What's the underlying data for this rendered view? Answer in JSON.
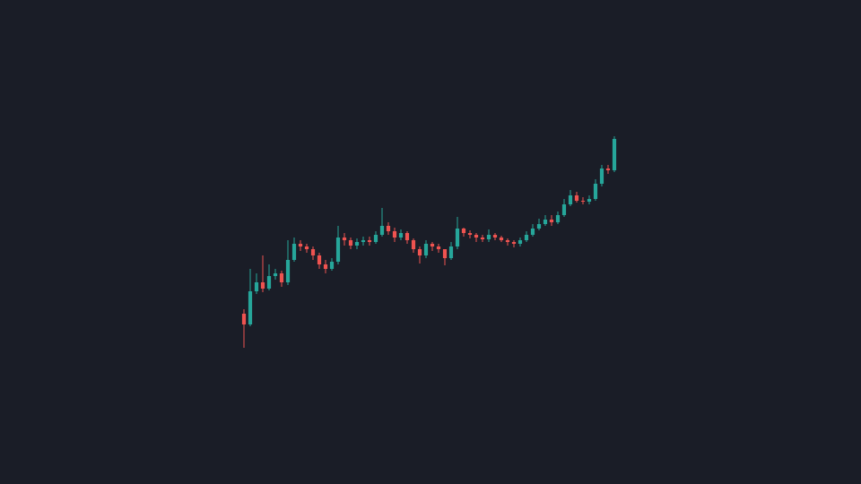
{
  "chart_data": {
    "type": "candlestick",
    "x": [
      0,
      1,
      2,
      3,
      4,
      5,
      6,
      7,
      8,
      9,
      10,
      11,
      12,
      13,
      14,
      15,
      16,
      17,
      18,
      19,
      20,
      21,
      22,
      23,
      24,
      25,
      26,
      27,
      28,
      29,
      30,
      31,
      32,
      33,
      34,
      35,
      36,
      37,
      38,
      39,
      40,
      41,
      42,
      43,
      44,
      45,
      46,
      47,
      48,
      49,
      50,
      51,
      52,
      53,
      54,
      55,
      56,
      57,
      58,
      59
    ],
    "open": [
      190,
      178,
      215,
      225,
      218,
      232,
      235,
      225,
      250,
      268,
      265,
      262,
      255,
      245,
      240,
      248,
      275,
      272,
      266,
      270,
      272,
      270,
      278,
      288,
      282,
      275,
      280,
      272,
      262,
      255,
      268,
      265,
      262,
      252,
      265,
      285,
      280,
      278,
      275,
      273,
      278,
      275,
      272,
      270,
      268,
      272,
      278,
      285,
      290,
      295,
      292,
      300,
      312,
      322,
      316,
      315,
      318,
      335,
      352,
      350
    ],
    "high": [
      195,
      240,
      235,
      255,
      245,
      240,
      238,
      272,
      275,
      272,
      268,
      265,
      258,
      250,
      252,
      288,
      280,
      275,
      274,
      276,
      276,
      282,
      308,
      292,
      286,
      284,
      282,
      274,
      265,
      272,
      270,
      268,
      262,
      270,
      298,
      286,
      283,
      280,
      278,
      284,
      280,
      277,
      274,
      272,
      275,
      282,
      290,
      296,
      300,
      300,
      304,
      318,
      328,
      326,
      320,
      322,
      340,
      356,
      356,
      388
    ],
    "low": [
      152,
      176,
      212,
      214,
      216,
      228,
      220,
      222,
      248,
      260,
      258,
      250,
      240,
      235,
      238,
      245,
      266,
      262,
      262,
      266,
      266,
      268,
      276,
      278,
      270,
      272,
      268,
      258,
      246,
      252,
      260,
      258,
      244,
      250,
      262,
      276,
      274,
      270,
      270,
      270,
      272,
      270,
      266,
      264,
      265,
      270,
      276,
      283,
      288,
      288,
      290,
      298,
      310,
      314,
      312,
      312,
      316,
      332,
      346,
      348
    ],
    "close": [
      178,
      215,
      225,
      218,
      232,
      235,
      225,
      250,
      268,
      265,
      262,
      255,
      245,
      240,
      248,
      275,
      272,
      266,
      270,
      272,
      270,
      278,
      288,
      282,
      275,
      280,
      272,
      262,
      255,
      268,
      265,
      262,
      252,
      265,
      285,
      280,
      278,
      275,
      273,
      278,
      275,
      272,
      270,
      268,
      272,
      278,
      285,
      290,
      295,
      292,
      300,
      312,
      322,
      316,
      315,
      318,
      335,
      352,
      350,
      385
    ],
    "up_color": "#26a69a",
    "down_color": "#ef5350",
    "xlim": [
      -38.86,
      98.29
    ],
    "ylim": [
      0,
      540
    ]
  }
}
